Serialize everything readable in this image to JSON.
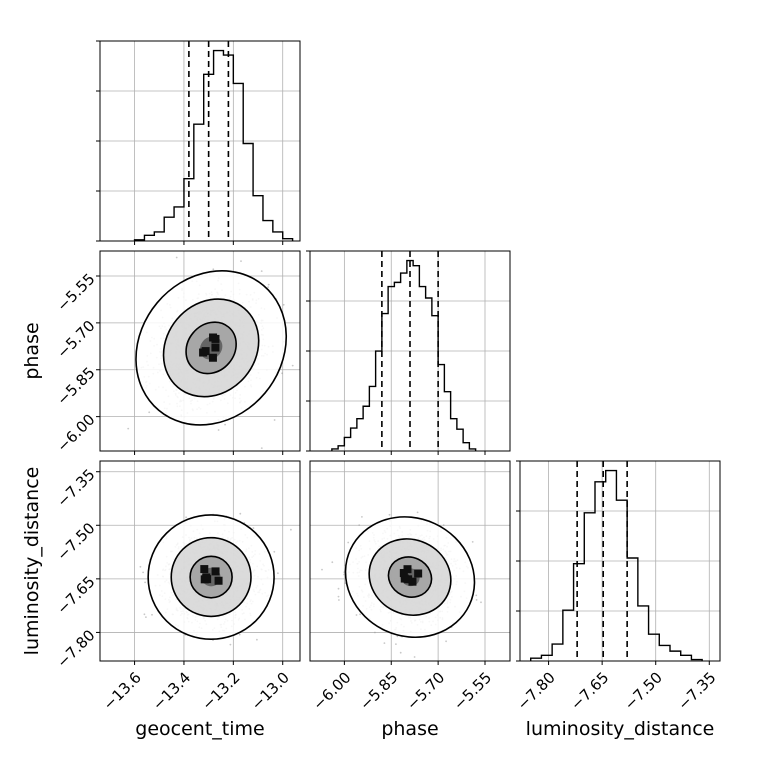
{
  "chart_data": {
    "type": "corner",
    "parameters": [
      "geocent_time",
      "phase",
      "luminosity_distance"
    ],
    "axis_labels": {
      "geocent_time": "geocent_time",
      "phase": "phase",
      "luminosity_distance": "luminosity_distance"
    },
    "ranges": {
      "geocent_time": [
        -13.74,
        -12.93
      ],
      "phase": [
        -6.11,
        -5.47
      ],
      "luminosity_distance": [
        -7.88,
        -7.32
      ]
    },
    "ticks": {
      "geocent_time": [
        -13.6,
        -13.4,
        -13.2,
        -13.0
      ],
      "phase": [
        -6.0,
        -5.85,
        -5.7,
        -5.55
      ],
      "luminosity_distance": [
        -7.8,
        -7.65,
        -7.5,
        -7.35
      ]
    },
    "tick_labels": {
      "geocent_time": [
        "−13.6",
        "−13.4",
        "−13.2",
        "−13.0"
      ],
      "phase": [
        "−6.00",
        "−5.85",
        "−5.70",
        "−5.55"
      ],
      "luminosity_distance": [
        "−7.80",
        "−7.65",
        "−7.50",
        "−7.35"
      ]
    },
    "quantiles": {
      "geocent_time": [
        -13.38,
        -13.3,
        -13.22
      ],
      "phase": [
        -5.88,
        -5.79,
        -5.7
      ],
      "luminosity_distance": [
        -7.72,
        -7.647,
        -7.58
      ]
    },
    "histograms": {
      "geocent_time": {
        "bins": [
          -13.6,
          -13.56,
          -13.52,
          -13.48,
          -13.44,
          -13.4,
          -13.36,
          -13.32,
          -13.28,
          -13.24,
          -13.2,
          -13.16,
          -13.12,
          -13.08,
          -13.04,
          -13.0,
          -12.96
        ],
        "counts": [
          1,
          5,
          8,
          21,
          30,
          55,
          103,
          147,
          168,
          164,
          139,
          86,
          40,
          18,
          8,
          2
        ]
      },
      "phase": {
        "bins": [
          -6.04,
          -6.02,
          -6.0,
          -5.98,
          -5.96,
          -5.94,
          -5.92,
          -5.9,
          -5.88,
          -5.86,
          -5.84,
          -5.82,
          -5.8,
          -5.78,
          -5.76,
          -5.74,
          -5.72,
          -5.7,
          -5.68,
          -5.66,
          -5.64,
          -5.62,
          -5.6,
          -5.58
        ],
        "counts": [
          2,
          5,
          13,
          22,
          31,
          43,
          62,
          96,
          132,
          158,
          162,
          171,
          183,
          178,
          158,
          147,
          130,
          83,
          57,
          31,
          21,
          8,
          2
        ]
      },
      "luminosity_distance": {
        "bins": [
          -7.85,
          -7.82,
          -7.79,
          -7.76,
          -7.73,
          -7.7,
          -7.67,
          -7.64,
          -7.61,
          -7.58,
          -7.55,
          -7.52,
          -7.49,
          -7.46,
          -7.43,
          -7.4,
          -7.37
        ],
        "counts": [
          2,
          4,
          12,
          36,
          69,
          105,
          127,
          135,
          114,
          73,
          39,
          19,
          11,
          7,
          4,
          1
        ]
      }
    },
    "contours": {
      "phase_vs_geocent_time": {
        "center": [
          -13.29,
          -5.78
        ],
        "rotation_deg": 50,
        "sigma": [
          0.11,
          0.075
        ],
        "levels": [
          1.0,
          1.9,
          3.0
        ]
      },
      "luminosity_distance_vs_geocent_time": {
        "center": [
          -13.29,
          -7.645
        ],
        "rotation_deg": 0,
        "sigma": [
          0.085,
          0.058
        ],
        "levels": [
          1.0,
          1.9,
          3.0
        ]
      },
      "luminosity_distance_vs_phase": {
        "center": [
          -5.79,
          -7.645
        ],
        "rotation_deg": -25,
        "sigma": [
          0.07,
          0.055
        ],
        "levels": [
          1.0,
          1.9,
          3.0
        ]
      }
    },
    "grid": true,
    "colors": {
      "line": "#000000",
      "points": "#9a9a9a",
      "grid": "#b0b0b0",
      "density_dark": "#101010",
      "density_light": "#e8e8e8"
    }
  }
}
